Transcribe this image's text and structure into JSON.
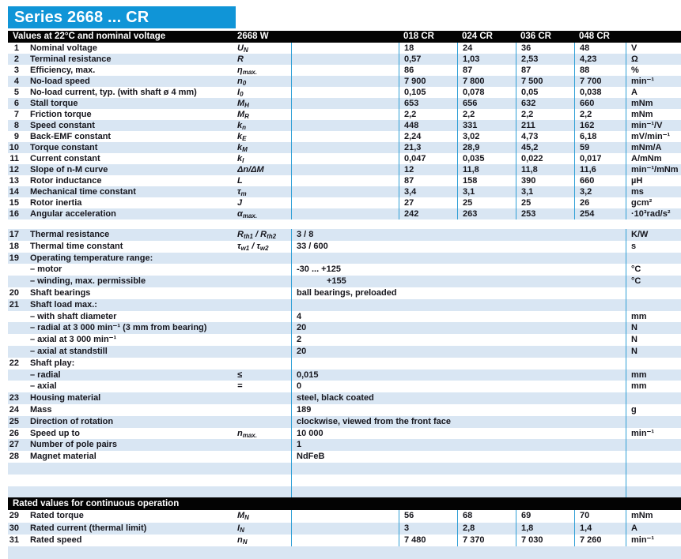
{
  "page": {
    "title": "Series 2668 ... CR",
    "colors": {
      "accent_blue": "#1095d7",
      "row_stripe": "#d9e6f3",
      "header_bar": "#030303",
      "grid_line": "#2f9fd6",
      "text": "#16161d"
    }
  },
  "table1_header": {
    "label": "Values at 22°C and nominal voltage",
    "model": "2668 W",
    "columns": [
      "018 CR",
      "024 CR",
      "036 CR",
      "048 CR"
    ]
  },
  "table2_header": {
    "label": "Rated values for continuous operation"
  },
  "rows_main": [
    {
      "num": "1",
      "label": "Nominal voltage",
      "symbol": "U~N~",
      "values": [
        "18",
        "24",
        "36",
        "48"
      ],
      "unit": "V"
    },
    {
      "num": "2",
      "label": "Terminal resistance",
      "symbol": "R",
      "values": [
        "0,57",
        "1,03",
        "2,53",
        "4,23"
      ],
      "unit": "Ω"
    },
    {
      "num": "3",
      "label": "Efficiency, max.",
      "symbol": "η~max.~",
      "values": [
        "86",
        "87",
        "87",
        "88"
      ],
      "unit": "%"
    },
    {
      "num": "4",
      "label": "No-load speed",
      "symbol": "n~0~",
      "values": [
        "7 900",
        "7 800",
        "7 500",
        "7 700"
      ],
      "unit": "min⁻¹"
    },
    {
      "num": "5",
      "label": "No-load current, typ. (with shaft ø 4 mm)",
      "symbol": "I~0~",
      "values": [
        "0,105",
        "0,078",
        "0,05",
        "0,038"
      ],
      "unit": "A"
    },
    {
      "num": "6",
      "label": "Stall torque",
      "symbol": "M~H~",
      "values": [
        "653",
        "656",
        "632",
        "660"
      ],
      "unit": "mNm"
    },
    {
      "num": "7",
      "label": "Friction torque",
      "symbol": "M~R~",
      "values": [
        "2,2",
        "2,2",
        "2,2",
        "2,2"
      ],
      "unit": "mNm"
    },
    {
      "num": "8",
      "label": "Speed constant",
      "symbol": "k~n~",
      "values": [
        "448",
        "331",
        "211",
        "162"
      ],
      "unit": "min⁻¹/V"
    },
    {
      "num": "9",
      "label": "Back-EMF constant",
      "symbol": "k~E~",
      "values": [
        "2,24",
        "3,02",
        "4,73",
        "6,18"
      ],
      "unit": "mV/min⁻¹"
    },
    {
      "num": "10",
      "label": "Torque constant",
      "symbol": "k~M~",
      "values": [
        "21,3",
        "28,9",
        "45,2",
        "59"
      ],
      "unit": "mNm/A"
    },
    {
      "num": "11",
      "label": "Current constant",
      "symbol": "k~I~",
      "values": [
        "0,047",
        "0,035",
        "0,022",
        "0,017"
      ],
      "unit": "A/mNm"
    },
    {
      "num": "12",
      "label": "Slope of n-M curve",
      "symbol": "Δn/ΔM",
      "values": [
        "12",
        "11,8",
        "11,8",
        "11,6"
      ],
      "unit": "min⁻¹/mNm"
    },
    {
      "num": "13",
      "label": "Rotor inductance",
      "symbol": "L",
      "values": [
        "87",
        "158",
        "390",
        "660"
      ],
      "unit": "µH"
    },
    {
      "num": "14",
      "label": "Mechanical time constant",
      "symbol": "τ~m~",
      "values": [
        "3,4",
        "3,1",
        "3,1",
        "3,2"
      ],
      "unit": "ms"
    },
    {
      "num": "15",
      "label": "Rotor inertia",
      "symbol": "J",
      "values": [
        "27",
        "25",
        "25",
        "26"
      ],
      "unit": "gcm²"
    },
    {
      "num": "16",
      "label": "Angular acceleration",
      "symbol": "α~max.~",
      "values": [
        "242",
        "263",
        "253",
        "254"
      ],
      "unit": "·10³rad/s²"
    }
  ],
  "rows_general": [
    {
      "num": "17",
      "label": "Thermal resistance",
      "symbol": "R~th1~ / R~th2~",
      "value": "3 / 8",
      "unit": "K/W"
    },
    {
      "num": "18",
      "label": "Thermal time constant",
      "symbol": "τ~w1~ / τ~w2~",
      "value": "33 / 600",
      "unit": "s"
    },
    {
      "num": "19",
      "label": "Operating temperature range:",
      "symbol": "",
      "value": "",
      "unit": ""
    },
    {
      "num": "",
      "label": "– motor",
      "symbol": "",
      "value": "-30 ... +125",
      "unit": "°C"
    },
    {
      "num": "",
      "label": "– winding, max. permissible",
      "symbol": "",
      "value": "+155",
      "unit": "°C",
      "indent": true
    },
    {
      "num": "20",
      "label": "Shaft bearings",
      "symbol": "",
      "value": "ball bearings, preloaded",
      "unit": ""
    },
    {
      "num": "21",
      "label": "Shaft load max.:",
      "symbol": "",
      "value": "",
      "unit": ""
    },
    {
      "num": "",
      "label": "– with shaft diameter",
      "symbol": "",
      "value": "4",
      "unit": "mm"
    },
    {
      "num": "",
      "label": "– radial at 3 000 min⁻¹ (3 mm from bearing)",
      "symbol": "",
      "value": "20",
      "unit": "N"
    },
    {
      "num": "",
      "label": "– axial at 3 000 min⁻¹",
      "symbol": "",
      "value": "2",
      "unit": "N"
    },
    {
      "num": "",
      "label": "– axial at standstill",
      "symbol": "",
      "value": "20",
      "unit": "N"
    },
    {
      "num": "22",
      "label": "Shaft play:",
      "symbol": "",
      "value": "",
      "unit": ""
    },
    {
      "num": "",
      "label": "– radial",
      "symbol": "≤",
      "value": "0,015",
      "unit": "mm"
    },
    {
      "num": "",
      "label": "– axial",
      "symbol": "=",
      "value": "0",
      "unit": "mm"
    },
    {
      "num": "23",
      "label": "Housing material",
      "symbol": "",
      "value": "steel, black coated",
      "unit": ""
    },
    {
      "num": "24",
      "label": "Mass",
      "symbol": "",
      "value": "189",
      "unit": "g"
    },
    {
      "num": "25",
      "label": "Direction of rotation",
      "symbol": "",
      "value": "clockwise, viewed from the front face",
      "unit": ""
    },
    {
      "num": "26",
      "label": "Speed up to",
      "symbol": "n~max.~",
      "value": "10 000",
      "unit": "min⁻¹"
    },
    {
      "num": "27",
      "label": "Number of pole pairs",
      "symbol": "",
      "value": "1",
      "unit": ""
    },
    {
      "num": "28",
      "label": "Magnet material",
      "symbol": "",
      "value": "NdFeB",
      "unit": ""
    }
  ],
  "rows_rated": [
    {
      "num": "29",
      "label": "Rated torque",
      "symbol": "M~N~",
      "values": [
        "56",
        "68",
        "69",
        "70"
      ],
      "unit": "mNm"
    },
    {
      "num": "30",
      "label": "Rated current (thermal limit)",
      "symbol": "I~N~",
      "values": [
        "3",
        "2,8",
        "1,8",
        "1,4"
      ],
      "unit": "A"
    },
    {
      "num": "31",
      "label": "Rated speed",
      "symbol": "n~N~",
      "values": [
        "7 480",
        "7 370",
        "7 030",
        "7 260"
      ],
      "unit": "min⁻¹"
    }
  ]
}
